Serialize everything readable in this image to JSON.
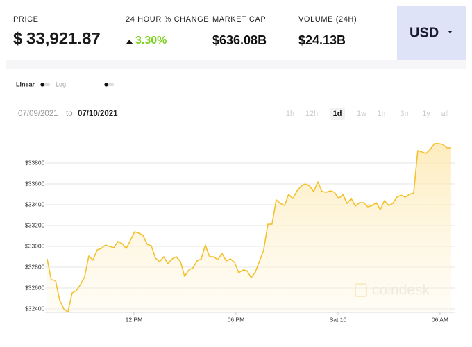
{
  "header": {
    "price_label": "PRICE",
    "price_currency": "$",
    "price": "33,921.87",
    "change_label": "24 HOUR % CHANGE",
    "change": "3.30%",
    "market_cap_label": "MARKET CAP",
    "market_cap": "$636.08B",
    "volume_label": "VOLUME (24H)",
    "volume": "$24.13B",
    "currency": "USD"
  },
  "scale_toggle": {
    "linear": "Linear",
    "log": "Log"
  },
  "date_range": {
    "from": "07/09/2021",
    "to_word": "to",
    "to": "07/10/2021"
  },
  "ranges": [
    "1h",
    "12h",
    "1d",
    "1w",
    "1m",
    "3m",
    "1y",
    "all"
  ],
  "selected_range": 2,
  "watermark": "coindesk",
  "chart_data": {
    "type": "line",
    "log_scale": false,
    "grid": true,
    "xlim": [
      6.78,
      30.86
    ],
    "xticks": [
      {
        "value": 12,
        "label": "12 PM"
      },
      {
        "value": 18,
        "label": "06 PM"
      },
      {
        "value": 24,
        "label": "Sat 10"
      },
      {
        "value": 30,
        "label": "06 AM"
      }
    ],
    "ylim": [
      32367,
      34100
    ],
    "yticks": [
      {
        "value": 32400,
        "label": "$32400"
      },
      {
        "value": 32600,
        "label": "$32600"
      },
      {
        "value": 32800,
        "label": "$32800"
      },
      {
        "value": 33000,
        "label": "$33000"
      },
      {
        "value": 33200,
        "label": "$33200"
      },
      {
        "value": 33400,
        "label": "$33400"
      },
      {
        "value": 33600,
        "label": "$33600"
      },
      {
        "value": 33800,
        "label": "$33800"
      }
    ],
    "series": [
      {
        "color": "#f2c12e",
        "x": [
          6.9,
          7.14,
          7.39,
          7.63,
          7.88,
          8.12,
          8.37,
          8.61,
          8.86,
          9.1,
          9.35,
          9.59,
          9.84,
          10.08,
          10.33,
          10.57,
          10.82,
          11.06,
          11.31,
          11.55,
          11.8,
          12.04,
          12.29,
          12.53,
          12.78,
          13.02,
          13.27,
          13.51,
          13.76,
          14.0,
          14.25,
          14.49,
          14.74,
          14.98,
          15.23,
          15.47,
          15.71,
          15.96,
          16.2,
          16.45,
          16.69,
          16.94,
          17.18,
          17.43,
          17.67,
          17.92,
          18.16,
          18.41,
          18.65,
          18.9,
          19.14,
          19.39,
          19.63,
          19.88,
          20.12,
          20.37,
          20.61,
          20.86,
          21.1,
          21.35,
          21.59,
          21.84,
          22.08,
          22.33,
          22.57,
          22.82,
          23.06,
          23.31,
          23.55,
          23.8,
          24.04,
          24.29,
          24.53,
          24.78,
          25.02,
          25.27,
          25.51,
          25.76,
          26.0,
          26.25,
          26.49,
          26.73,
          26.98,
          27.22,
          27.47,
          27.71,
          27.96,
          28.2,
          28.45,
          28.69,
          28.94,
          29.18,
          29.43,
          29.67,
          29.92,
          30.16,
          30.41,
          30.65
        ],
        "values": [
          32880,
          32680,
          32673,
          32487,
          32400,
          32370,
          32553,
          32573,
          32633,
          32707,
          32907,
          32867,
          32967,
          32980,
          33013,
          33000,
          32987,
          33047,
          33027,
          32980,
          33060,
          33140,
          33127,
          33107,
          33020,
          33007,
          32887,
          32853,
          32900,
          32833,
          32880,
          32900,
          32853,
          32713,
          32773,
          32793,
          32860,
          32880,
          33013,
          32900,
          32900,
          32873,
          32933,
          32860,
          32880,
          32847,
          32747,
          32773,
          32767,
          32700,
          32753,
          32860,
          32967,
          33213,
          33213,
          33447,
          33413,
          33393,
          33500,
          33460,
          33533,
          33580,
          33600,
          33580,
          33527,
          33620,
          33527,
          33520,
          33533,
          33520,
          33460,
          33500,
          33413,
          33460,
          33387,
          33420,
          33420,
          33380,
          33393,
          33420,
          33353,
          33440,
          33393,
          33413,
          33473,
          33493,
          33473,
          33500,
          33513,
          33920,
          33907,
          33893,
          33933,
          33987,
          33987,
          33980,
          33947,
          33947
        ]
      }
    ]
  }
}
